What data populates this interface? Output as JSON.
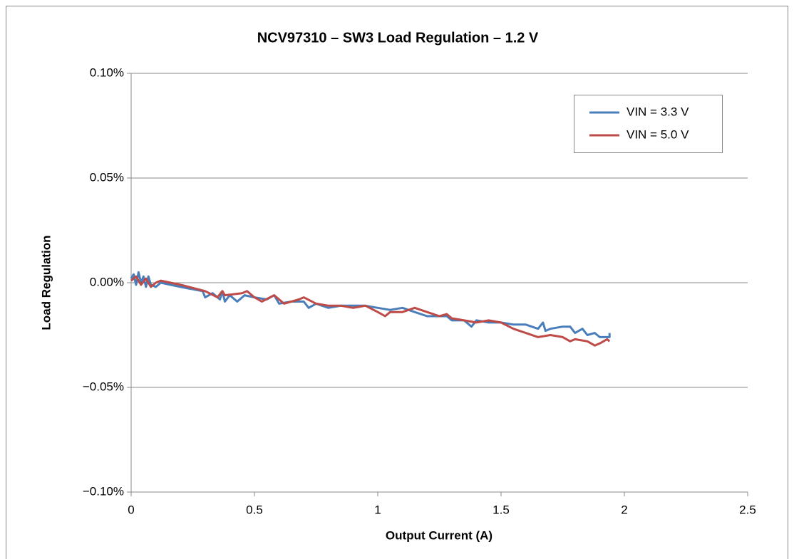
{
  "chart_data": {
    "type": "line",
    "title": "NCV97310 – SW3 Load Regulation – 1.2 V",
    "x_label": "Output Current (A)",
    "y_label": "Load Regulation",
    "xlim": [
      0,
      2.5
    ],
    "xticks": [
      0,
      0.5,
      1,
      1.5,
      2,
      2.5
    ],
    "ylim": [
      -0.1,
      0.1
    ],
    "yticks": [
      {
        "value": -0.1,
        "label": "−0.10%"
      },
      {
        "value": -0.05,
        "label": "−0.05%"
      },
      {
        "value": 0,
        "label": "0.00%"
      },
      {
        "value": 0.05,
        "label": "0.05%"
      },
      {
        "value": 0.1,
        "label": "0.10%"
      }
    ],
    "grid": true,
    "legend": "upper right",
    "series": [
      {
        "name": "VIN = 3.3 V",
        "color": "#4a7ebb",
        "x": [
          0,
          0.01,
          0.02,
          0.03,
          0.04,
          0.05,
          0.06,
          0.07,
          0.08,
          0.1,
          0.12,
          0.2,
          0.29,
          0.3,
          0.33,
          0.36,
          0.37,
          0.38,
          0.4,
          0.43,
          0.46,
          0.5,
          0.55,
          0.58,
          0.6,
          0.65,
          0.7,
          0.72,
          0.75,
          0.8,
          0.85,
          0.9,
          0.95,
          1.0,
          1.05,
          1.1,
          1.15,
          1.2,
          1.25,
          1.28,
          1.3,
          1.35,
          1.38,
          1.4,
          1.45,
          1.5,
          1.55,
          1.6,
          1.65,
          1.67,
          1.68,
          1.7,
          1.75,
          1.78,
          1.8,
          1.83,
          1.85,
          1.88,
          1.9,
          1.94,
          1.94
        ],
        "values": [
          0.002,
          0.004,
          -0.001,
          0.005,
          0.0,
          0.003,
          -0.002,
          0.003,
          -0.001,
          -0.002,
          0.0,
          -0.002,
          -0.004,
          -0.007,
          -0.005,
          -0.008,
          -0.004,
          -0.009,
          -0.006,
          -0.009,
          -0.006,
          -0.007,
          -0.008,
          -0.006,
          -0.01,
          -0.009,
          -0.009,
          -0.012,
          -0.01,
          -0.012,
          -0.011,
          -0.011,
          -0.011,
          -0.012,
          -0.013,
          -0.012,
          -0.014,
          -0.016,
          -0.016,
          -0.016,
          -0.018,
          -0.018,
          -0.021,
          -0.018,
          -0.019,
          -0.019,
          -0.02,
          -0.02,
          -0.022,
          -0.019,
          -0.023,
          -0.022,
          -0.021,
          -0.021,
          -0.024,
          -0.022,
          -0.025,
          -0.024,
          -0.026,
          -0.026,
          -0.024
        ]
      },
      {
        "name": "VIN = 5.0 V",
        "color": "#be4b48",
        "x": [
          0,
          0.02,
          0.04,
          0.06,
          0.08,
          0.1,
          0.12,
          0.2,
          0.3,
          0.35,
          0.37,
          0.38,
          0.45,
          0.47,
          0.5,
          0.53,
          0.58,
          0.62,
          0.68,
          0.7,
          0.75,
          0.8,
          0.85,
          0.9,
          0.95,
          1.0,
          1.03,
          1.05,
          1.1,
          1.15,
          1.2,
          1.25,
          1.28,
          1.3,
          1.35,
          1.4,
          1.45,
          1.5,
          1.55,
          1.6,
          1.65,
          1.7,
          1.75,
          1.78,
          1.8,
          1.85,
          1.88,
          1.9,
          1.93,
          1.94
        ],
        "values": [
          0.001,
          0.003,
          -0.001,
          0.002,
          -0.002,
          0.0,
          0.001,
          -0.001,
          -0.004,
          -0.007,
          -0.004,
          -0.006,
          -0.005,
          -0.004,
          -0.007,
          -0.009,
          -0.006,
          -0.01,
          -0.008,
          -0.007,
          -0.01,
          -0.011,
          -0.011,
          -0.012,
          -0.011,
          -0.014,
          -0.016,
          -0.014,
          -0.014,
          -0.012,
          -0.014,
          -0.016,
          -0.015,
          -0.017,
          -0.018,
          -0.019,
          -0.018,
          -0.019,
          -0.022,
          -0.024,
          -0.026,
          -0.025,
          -0.026,
          -0.028,
          -0.027,
          -0.028,
          -0.03,
          -0.029,
          -0.027,
          -0.028
        ]
      }
    ]
  }
}
